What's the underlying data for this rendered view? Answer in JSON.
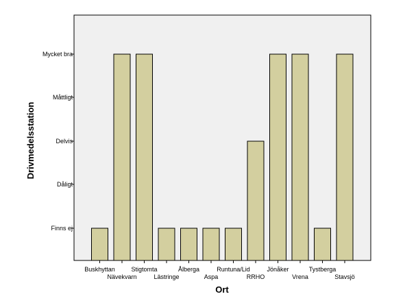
{
  "chart_data": {
    "type": "bar",
    "xlabel": "Ort",
    "ylabel": "Drivmedelsstation",
    "categories": [
      "Buskhyttan",
      "Nävekvarn",
      "Stigtomta",
      "Lästringe",
      "Ålberga",
      "Aspa",
      "Runtuna/Lid",
      "RRHO",
      "Jönåker",
      "Vrena",
      "Tystberga",
      "Stavsjö"
    ],
    "y_levels": [
      "Finns ej",
      "Dåligt",
      "Delvis",
      "Måttligt",
      "Mycket bra"
    ],
    "values": [
      "Finns ej",
      "Mycket bra",
      "Mycket bra",
      "Finns ej",
      "Finns ej",
      "Finns ej",
      "Finns ej",
      "Delvis",
      "Mycket bra",
      "Mycket bra",
      "Finns ej",
      "Mycket bra"
    ],
    "grid": false,
    "colors": {
      "bar_fill": "#d3cf9f",
      "bar_stroke": "#000000",
      "plot_background": "#f0f0f0"
    }
  }
}
